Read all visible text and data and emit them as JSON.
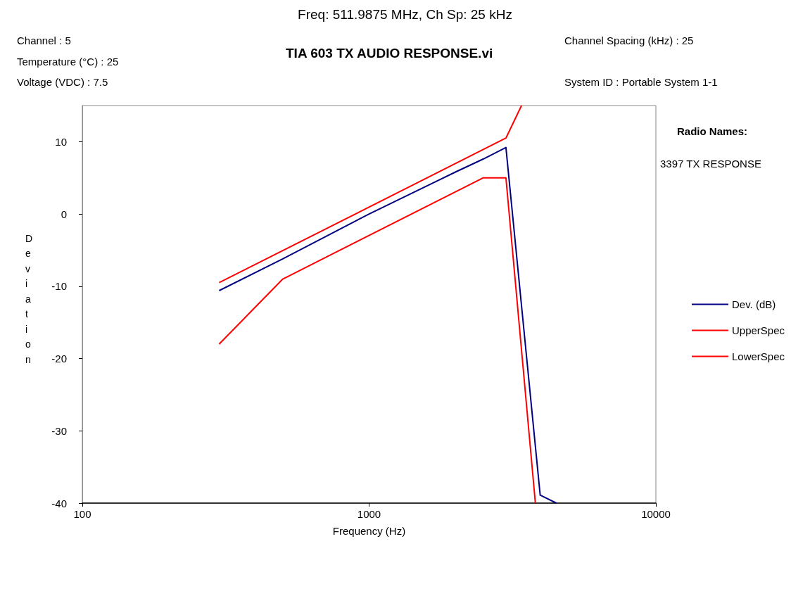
{
  "chart_data": {
    "type": "line",
    "title": "Freq: 511.9875 MHz, Ch Sp: 25 kHz",
    "subtitle": "TIA 603 TX AUDIO RESPONSE.vi",
    "xlabel": "Frequency (Hz)",
    "ylabel": "Deviation",
    "annotations": [
      "Channel : 5",
      "Temperature (°C) : 25",
      "Voltage (VDC) : 7.5",
      "Channel Spacing (kHz) : 25",
      "System ID : Portable System 1-1",
      "Radio Names:",
      "3397 TX RESPONSE"
    ],
    "series": [
      {
        "name": "Dev. (dB)",
        "color": "#000080",
        "x": [
          300,
          500,
          1000,
          2000,
          2500,
          3000,
          3950,
          4500
        ],
        "values": [
          -10.6,
          -6.2,
          0,
          5.8,
          7.6,
          9.2,
          -38.9,
          -40
        ]
      },
      {
        "name": "UpperSpec",
        "color": "#ff0000",
        "x": [
          300,
          3000,
          3400
        ],
        "values": [
          -9.5,
          10.5,
          15
        ]
      },
      {
        "name": "LowerSpec",
        "color": "#ff0000",
        "x": [
          300,
          500,
          2500,
          3000,
          3800
        ],
        "values": [
          -18,
          -9,
          5,
          5,
          -40
        ]
      }
    ],
    "log": "x",
    "xlim": [
      100,
      10000
    ],
    "xticks": [
      100,
      1000,
      10000
    ],
    "ylim": [
      -40,
      15
    ],
    "yticks": [
      -40,
      -30,
      -20,
      -10,
      0,
      10
    ],
    "grid": false,
    "legend": "right",
    "marker": "none",
    "line_style": "solid"
  }
}
